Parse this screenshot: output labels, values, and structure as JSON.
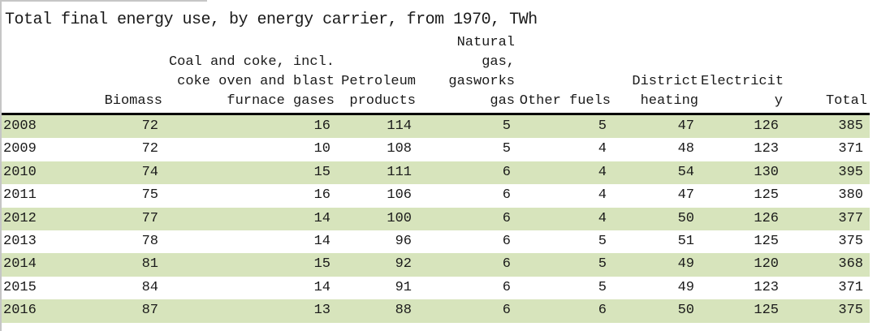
{
  "title": "Total final energy use, by energy carrier, from 1970, TWh",
  "table": {
    "headers": [
      "",
      "Biomass",
      "Coal and coke, incl.\ncoke oven and blast\nfurnace gases",
      "Petroleum\nproducts",
      "Natural gas,\ngasworks gas",
      "Other fuels",
      "District\nheating",
      "Electricit\ny",
      "Total"
    ],
    "rows": [
      {
        "year": "2008",
        "values": [
          "72",
          "16",
          "114",
          "5",
          "5",
          "47",
          "126",
          "385"
        ]
      },
      {
        "year": "2009",
        "values": [
          "72",
          "10",
          "108",
          "5",
          "4",
          "48",
          "123",
          "371"
        ]
      },
      {
        "year": "2010",
        "values": [
          "74",
          "15",
          "111",
          "6",
          "4",
          "54",
          "130",
          "395"
        ]
      },
      {
        "year": "2011",
        "values": [
          "75",
          "16",
          "106",
          "6",
          "4",
          "47",
          "125",
          "380"
        ]
      },
      {
        "year": "2012",
        "values": [
          "77",
          "14",
          "100",
          "6",
          "4",
          "50",
          "126",
          "377"
        ]
      },
      {
        "year": "2013",
        "values": [
          "78",
          "14",
          "96",
          "6",
          "5",
          "51",
          "125",
          "375"
        ]
      },
      {
        "year": "2014",
        "values": [
          "81",
          "15",
          "92",
          "6",
          "5",
          "49",
          "120",
          "368"
        ]
      },
      {
        "year": "2015",
        "values": [
          "84",
          "14",
          "91",
          "6",
          "5",
          "49",
          "123",
          "371"
        ]
      },
      {
        "year": "2016",
        "values": [
          "87",
          "13",
          "88",
          "6",
          "6",
          "50",
          "125",
          "375"
        ]
      }
    ]
  },
  "colors": {
    "row_highlight": "#d7e4bc",
    "header_rule": "#000000",
    "sheet_border": "#c6c6c6",
    "text": "#1a1a1a"
  }
}
